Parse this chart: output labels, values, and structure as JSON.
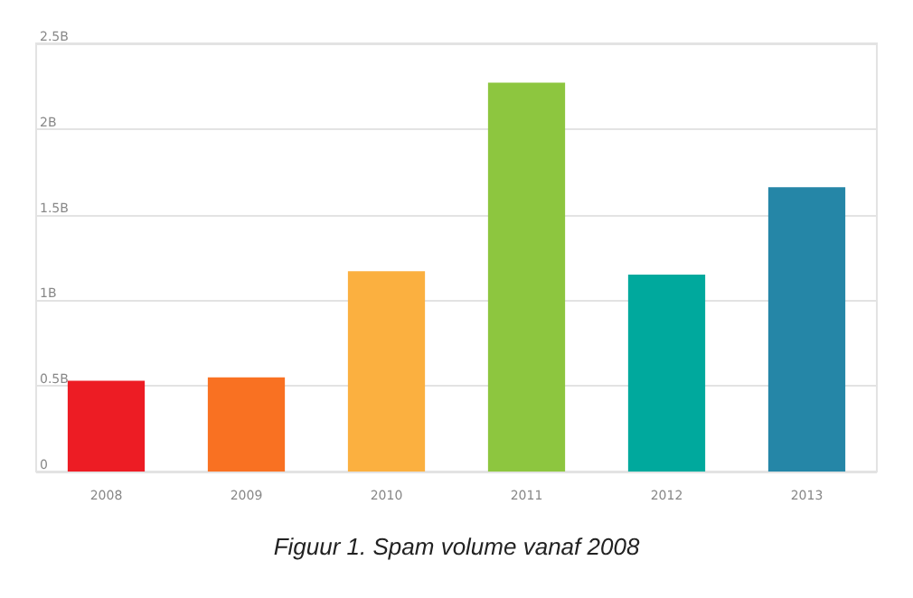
{
  "chart_data": {
    "type": "bar",
    "categories": [
      "2008",
      "2009",
      "2010",
      "2011",
      "2012",
      "2013"
    ],
    "values": [
      0.53,
      0.55,
      1.17,
      2.27,
      1.15,
      1.66
    ],
    "colors": [
      "#ed1c24",
      "#f97122",
      "#fbb040",
      "#8dc63f",
      "#00a99d",
      "#2586a7"
    ],
    "ylim": [
      0,
      2.5
    ],
    "yticks": [
      0,
      {
        "value": 0.5,
        "label": "0.5B"
      },
      {
        "value": 1,
        "label": "1B"
      },
      {
        "value": 1.5,
        "label": "1.5B"
      },
      {
        "value": 2,
        "label": "2B"
      },
      {
        "value": 2.5,
        "label": "2.5B"
      }
    ],
    "grid": "y",
    "annotations": [
      "Figuur 1. Spam volume vanaf 2008"
    ]
  }
}
